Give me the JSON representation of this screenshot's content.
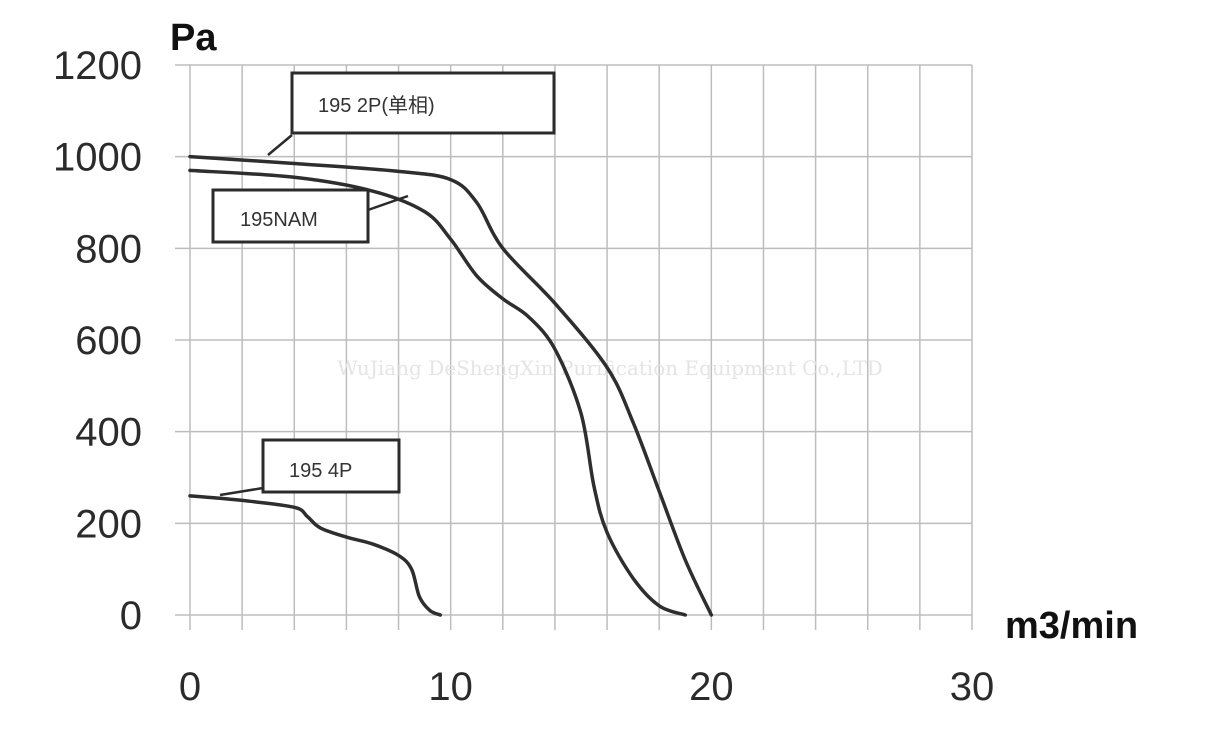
{
  "chart_data": {
    "type": "line",
    "ylabel": "Pa",
    "xlabel": "m3/min",
    "xlim": [
      0,
      30
    ],
    "ylim": [
      0,
      1200
    ],
    "x_ticks": [
      "0",
      "10",
      "20",
      "30"
    ],
    "y_ticks": [
      "0",
      "200",
      "400",
      "600",
      "800",
      "1000",
      "1200"
    ],
    "grid": true,
    "series": [
      {
        "name": "195 2P(单相)",
        "points": [
          [
            0,
            1000
          ],
          [
            4,
            985
          ],
          [
            8,
            968
          ],
          [
            10,
            950
          ],
          [
            11,
            900
          ],
          [
            12,
            800
          ],
          [
            14,
            680
          ],
          [
            16,
            540
          ],
          [
            17,
            420
          ],
          [
            18,
            270
          ],
          [
            19,
            120
          ],
          [
            20,
            0
          ]
        ]
      },
      {
        "name": "195NAM",
        "points": [
          [
            0,
            970
          ],
          [
            4,
            955
          ],
          [
            7,
            925
          ],
          [
            9,
            880
          ],
          [
            10,
            820
          ],
          [
            11,
            740
          ],
          [
            12,
            690
          ],
          [
            13,
            650
          ],
          [
            14,
            580
          ],
          [
            15,
            440
          ],
          [
            15.5,
            280
          ],
          [
            16,
            180
          ],
          [
            17,
            80
          ],
          [
            18,
            20
          ],
          [
            19,
            0
          ]
        ]
      },
      {
        "name": "195  4P",
        "points": [
          [
            0,
            260
          ],
          [
            2,
            250
          ],
          [
            4,
            235
          ],
          [
            4.5,
            215
          ],
          [
            5,
            190
          ],
          [
            6,
            170
          ],
          [
            7,
            155
          ],
          [
            8,
            130
          ],
          [
            8.5,
            100
          ],
          [
            8.8,
            40
          ],
          [
            9.2,
            10
          ],
          [
            9.6,
            0
          ]
        ]
      }
    ],
    "watermark": "WuJiang DeShengXin Purification Equipment Co.,LTD"
  }
}
